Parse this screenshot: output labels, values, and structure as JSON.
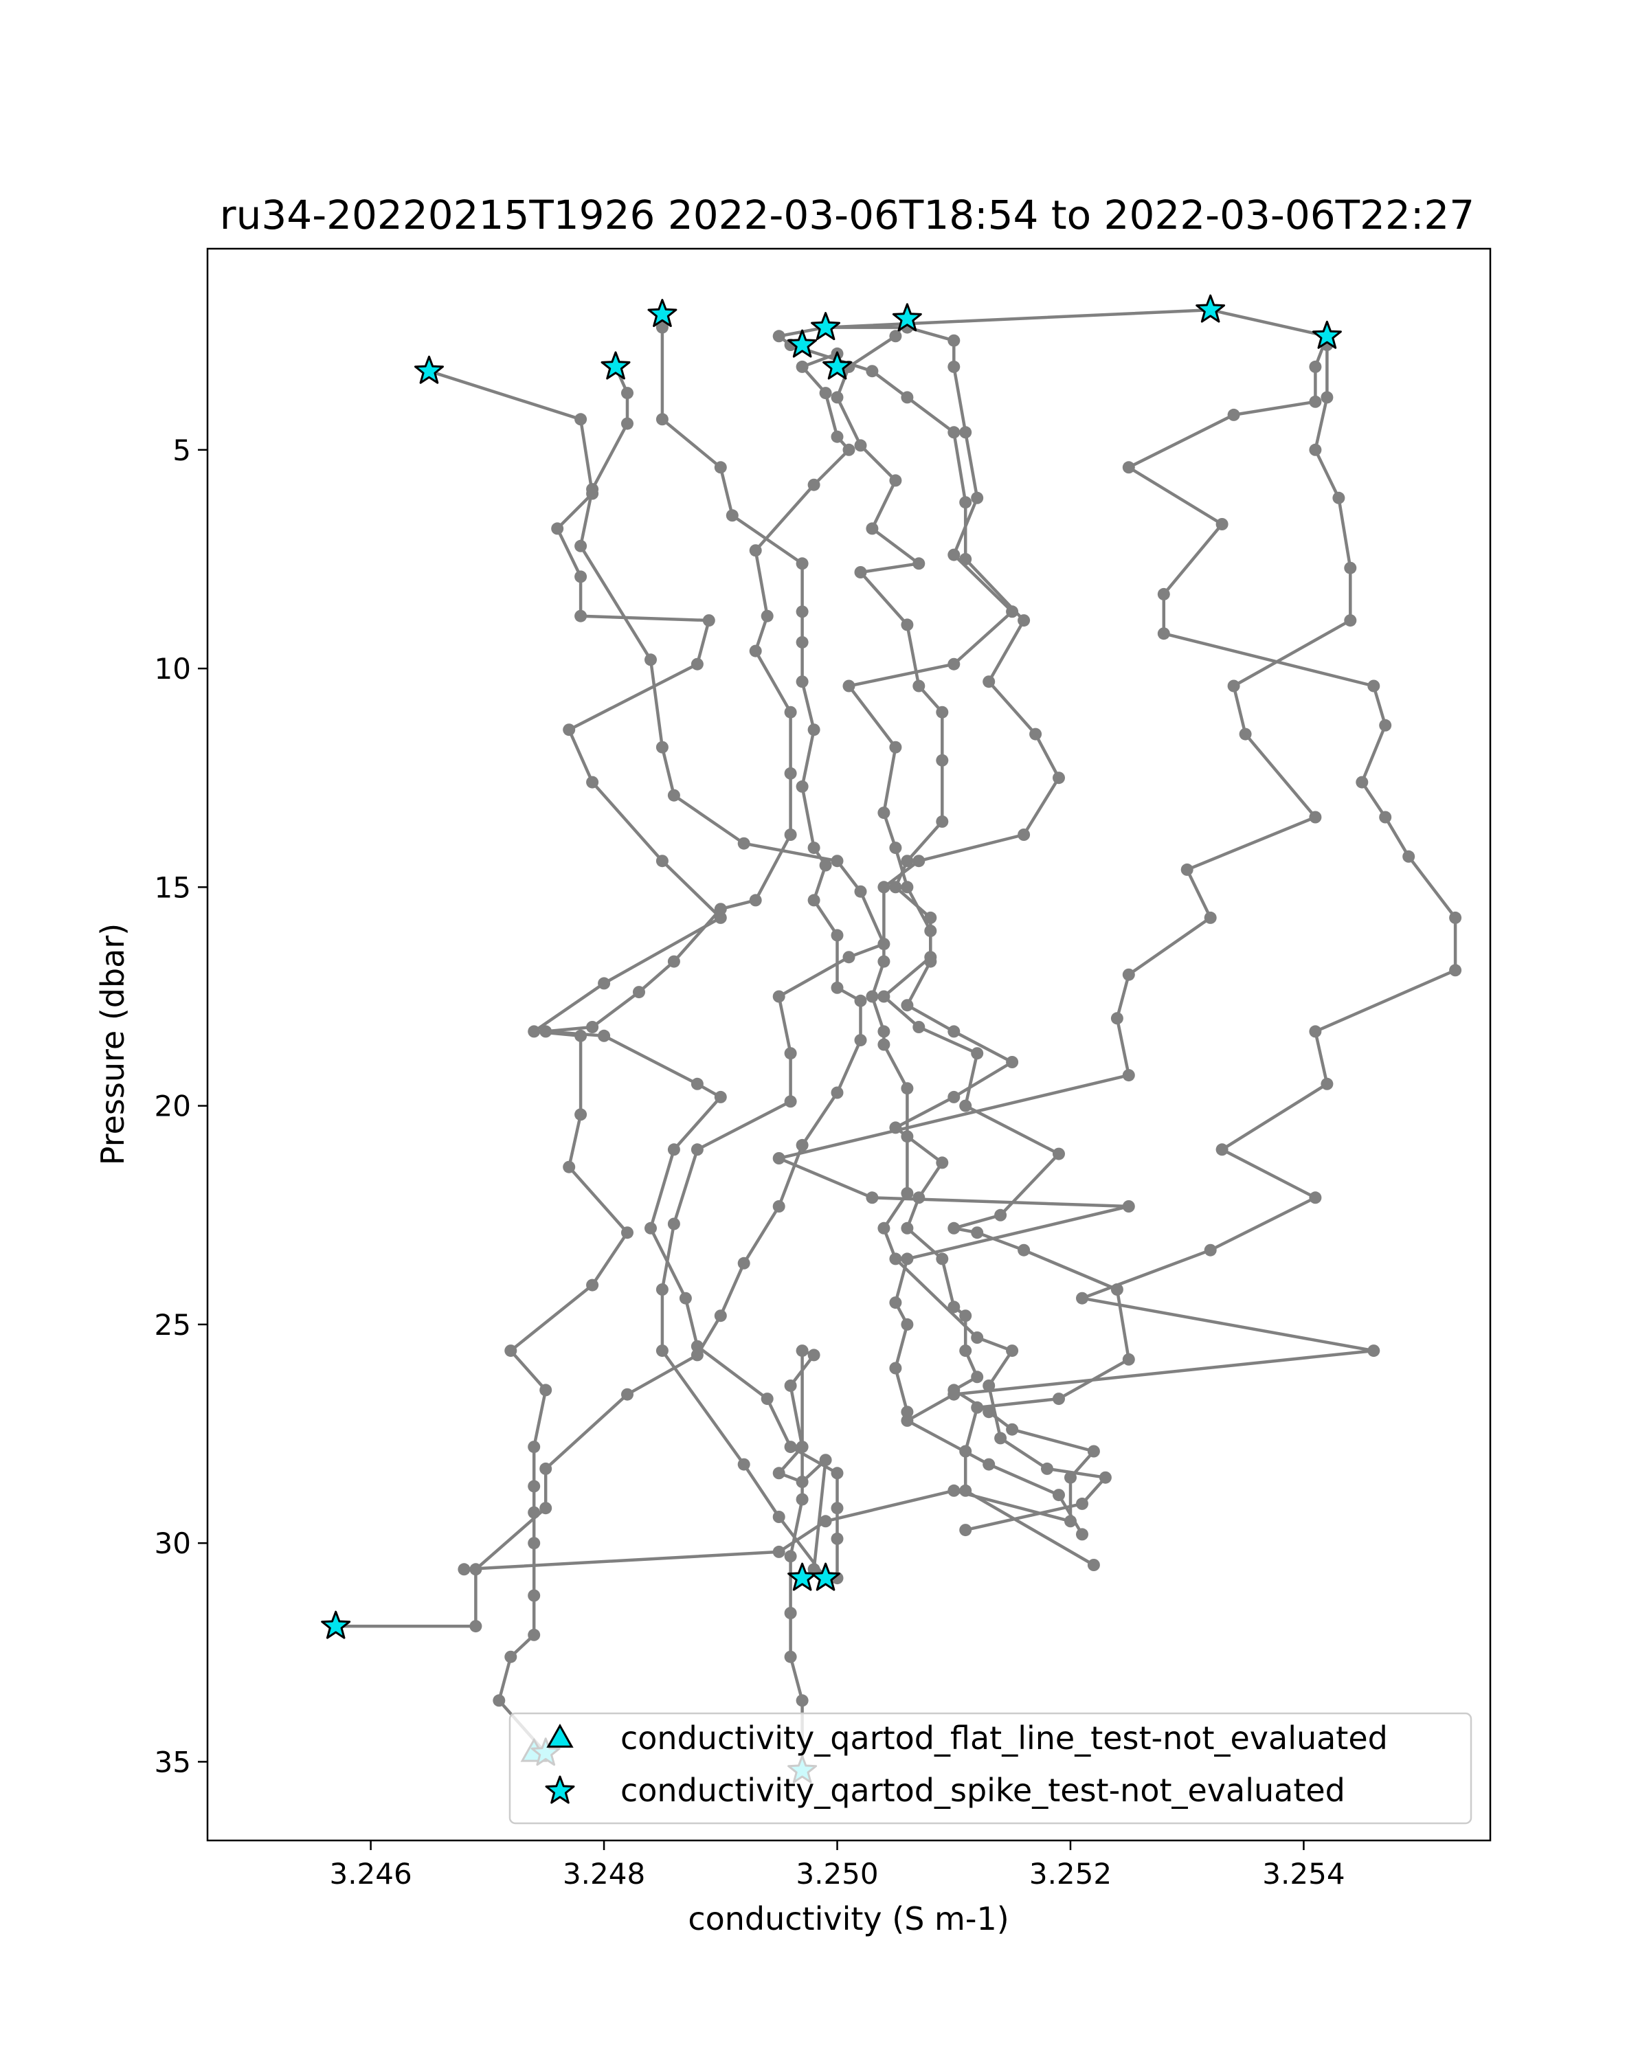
{
  "chart_data": {
    "type": "line",
    "title": "ru34-20220215T1926 2022-03-06T18:54 to 2022-03-06T22:27",
    "xlabel": "conductivity (S m-1)",
    "ylabel": "Pressure (dbar)",
    "xlim": [
      3.2446,
      3.2556
    ],
    "ylim": [
      36.8,
      0.4
    ],
    "y_inverted": true,
    "grid": false,
    "xticks": [
      3.246,
      3.248,
      3.25,
      3.252,
      3.254
    ],
    "xtick_labels": [
      "3.246",
      "3.248",
      "3.250",
      "3.252",
      "3.254"
    ],
    "yticks": [
      5,
      10,
      15,
      20,
      25,
      30,
      35
    ],
    "ytick_labels": [
      "5",
      "10",
      "15",
      "20",
      "25",
      "30",
      "35"
    ],
    "line_color": "#808080",
    "marker_color": "#00e5ee",
    "legend_placement": "lower center",
    "legend": [
      {
        "label": "conductivity_qartod_flat_line_test-not_evaluated",
        "marker": "triangle"
      },
      {
        "label": "conductivity_qartod_spike_test-not_evaluated",
        "marker": "star"
      }
    ],
    "series": [
      {
        "values": [
          [
            3.2465,
            3.2
          ],
          [
            3.2478,
            4.3
          ],
          [
            3.2479,
            6.0
          ],
          [
            3.2476,
            6.8
          ],
          [
            3.2478,
            7.9
          ],
          [
            3.2478,
            8.8
          ],
          [
            3.2489,
            8.9
          ],
          [
            3.2488,
            9.9
          ],
          [
            3.2477,
            11.4
          ],
          [
            3.2479,
            12.6
          ],
          [
            3.2485,
            14.4
          ],
          [
            3.249,
            15.7
          ],
          [
            3.248,
            17.2
          ],
          [
            3.2474,
            18.3
          ],
          [
            3.2478,
            18.4
          ],
          [
            3.2478,
            20.2
          ],
          [
            3.2477,
            21.4
          ],
          [
            3.2482,
            22.9
          ],
          [
            3.2479,
            24.1
          ],
          [
            3.2472,
            25.6
          ],
          [
            3.2475,
            26.5
          ],
          [
            3.2474,
            27.8
          ],
          [
            3.2474,
            28.7
          ],
          [
            3.2474,
            29.3
          ],
          [
            3.2474,
            30.0
          ],
          [
            3.2474,
            31.2
          ],
          [
            3.2474,
            32.1
          ],
          [
            3.2472,
            32.6
          ],
          [
            3.2471,
            33.6
          ],
          [
            3.2475,
            34.8
          ]
        ]
      },
      {
        "values": [
          [
            3.2481,
            3.1
          ],
          [
            3.2482,
            3.7
          ],
          [
            3.2482,
            4.4
          ],
          [
            3.2479,
            5.9
          ],
          [
            3.2478,
            7.2
          ],
          [
            3.2484,
            9.8
          ],
          [
            3.2485,
            11.8
          ],
          [
            3.2486,
            12.9
          ],
          [
            3.2492,
            14.0
          ],
          [
            3.25,
            14.4
          ],
          [
            3.2502,
            15.1
          ],
          [
            3.2504,
            16.3
          ],
          [
            3.2501,
            16.6
          ],
          [
            3.2495,
            17.5
          ],
          [
            3.2496,
            18.8
          ],
          [
            3.2496,
            19.9
          ],
          [
            3.2488,
            21.0
          ],
          [
            3.2486,
            22.7
          ],
          [
            3.2485,
            24.2
          ],
          [
            3.2485,
            25.6
          ],
          [
            3.2492,
            28.2
          ],
          [
            3.2495,
            29.4
          ],
          [
            3.2499,
            30.8
          ],
          [
            3.2498,
            30.6
          ],
          [
            3.2499,
            28.1
          ],
          [
            3.2497,
            28.6
          ],
          [
            3.2495,
            28.4
          ],
          [
            3.2497,
            27.8
          ],
          [
            3.2496,
            26.4
          ],
          [
            3.2498,
            25.7
          ],
          [
            3.2497,
            25.6
          ],
          [
            3.2497,
            29.0
          ],
          [
            3.2496,
            30.3
          ],
          [
            3.2496,
            31.6
          ],
          [
            3.2496,
            32.6
          ],
          [
            3.2497,
            33.6
          ],
          [
            3.2497,
            35.2
          ]
        ]
      },
      {
        "values": [
          [
            3.2485,
            1.9
          ],
          [
            3.2485,
            2.2
          ],
          [
            3.2485,
            4.3
          ],
          [
            3.249,
            5.4
          ],
          [
            3.2491,
            6.5
          ],
          [
            3.2497,
            7.6
          ],
          [
            3.2497,
            8.7
          ],
          [
            3.2497,
            9.4
          ],
          [
            3.2497,
            10.3
          ],
          [
            3.2498,
            11.4
          ],
          [
            3.2497,
            12.7
          ],
          [
            3.2498,
            14.1
          ],
          [
            3.2499,
            14.5
          ],
          [
            3.2498,
            15.3
          ],
          [
            3.25,
            16.1
          ],
          [
            3.25,
            17.3
          ],
          [
            3.2502,
            17.6
          ],
          [
            3.2502,
            18.5
          ],
          [
            3.25,
            19.7
          ],
          [
            3.2497,
            20.9
          ],
          [
            3.2495,
            22.3
          ],
          [
            3.2492,
            23.6
          ],
          [
            3.249,
            24.8
          ],
          [
            3.2488,
            25.7
          ],
          [
            3.2482,
            26.6
          ],
          [
            3.2475,
            28.3
          ],
          [
            3.2475,
            29.2
          ],
          [
            3.2469,
            30.6
          ],
          [
            3.2469,
            31.9
          ],
          [
            3.2457,
            31.9
          ]
        ]
      },
      {
        "values": [
          [
            3.25,
            2.8
          ],
          [
            3.2497,
            3.1
          ],
          [
            3.2499,
            3.7
          ],
          [
            3.25,
            4.7
          ],
          [
            3.2501,
            5.0
          ],
          [
            3.2498,
            5.8
          ],
          [
            3.2493,
            7.3
          ],
          [
            3.2494,
            8.8
          ],
          [
            3.2493,
            9.6
          ],
          [
            3.2496,
            11.0
          ],
          [
            3.2496,
            12.4
          ],
          [
            3.2496,
            13.8
          ],
          [
            3.2493,
            15.3
          ],
          [
            3.249,
            15.5
          ],
          [
            3.2486,
            16.7
          ],
          [
            3.2483,
            17.4
          ],
          [
            3.2479,
            18.2
          ],
          [
            3.2475,
            18.3
          ],
          [
            3.248,
            18.4
          ],
          [
            3.2488,
            19.5
          ],
          [
            3.249,
            19.8
          ],
          [
            3.2486,
            21.0
          ],
          [
            3.2484,
            22.8
          ],
          [
            3.2487,
            24.4
          ],
          [
            3.2488,
            25.5
          ],
          [
            3.2494,
            26.7
          ],
          [
            3.2496,
            27.8
          ],
          [
            3.25,
            28.4
          ],
          [
            3.25,
            29.2
          ],
          [
            3.25,
            29.9
          ],
          [
            3.25,
            30.8
          ]
        ]
      },
      {
        "values": [
          [
            3.2506,
            2.0
          ],
          [
            3.2505,
            2.4
          ],
          [
            3.2501,
            3.1
          ],
          [
            3.25,
            3.8
          ],
          [
            3.2502,
            4.9
          ],
          [
            3.2505,
            5.7
          ],
          [
            3.2503,
            6.8
          ],
          [
            3.2507,
            7.6
          ],
          [
            3.2502,
            7.8
          ],
          [
            3.2506,
            9.0
          ],
          [
            3.2507,
            10.4
          ],
          [
            3.2509,
            11.0
          ],
          [
            3.2509,
            12.1
          ],
          [
            3.2509,
            13.5
          ],
          [
            3.2506,
            14.4
          ],
          [
            3.2505,
            15.0
          ],
          [
            3.2508,
            15.7
          ],
          [
            3.2508,
            16.7
          ],
          [
            3.2506,
            17.7
          ],
          [
            3.251,
            18.3
          ],
          [
            3.2515,
            19.0
          ],
          [
            3.251,
            19.8
          ],
          [
            3.2505,
            20.5
          ],
          [
            3.2509,
            21.3
          ],
          [
            3.2507,
            22.1
          ],
          [
            3.2506,
            22.8
          ],
          [
            3.2509,
            23.5
          ],
          [
            3.251,
            24.6
          ],
          [
            3.2511,
            24.8
          ],
          [
            3.2511,
            25.6
          ],
          [
            3.2512,
            26.2
          ],
          [
            3.251,
            26.5
          ],
          [
            3.2513,
            27.0
          ],
          [
            3.2515,
            27.4
          ],
          [
            3.2522,
            27.9
          ],
          [
            3.252,
            28.5
          ],
          [
            3.252,
            29.5
          ],
          [
            3.251,
            28.8
          ],
          [
            3.2499,
            29.5
          ],
          [
            3.2495,
            30.2
          ],
          [
            3.2468,
            30.6
          ]
        ]
      },
      {
        "values": [
          [
            3.2499,
            2.2
          ],
          [
            3.2506,
            2.2
          ],
          [
            3.251,
            2.5
          ],
          [
            3.251,
            3.1
          ],
          [
            3.2511,
            4.6
          ],
          [
            3.2512,
            6.1
          ],
          [
            3.251,
            7.4
          ],
          [
            3.2515,
            8.7
          ],
          [
            3.251,
            9.9
          ],
          [
            3.2501,
            10.4
          ],
          [
            3.2505,
            11.8
          ],
          [
            3.2504,
            13.3
          ],
          [
            3.2505,
            14.1
          ],
          [
            3.2506,
            15.0
          ],
          [
            3.2508,
            16.0
          ],
          [
            3.2508,
            16.6
          ],
          [
            3.2504,
            17.5
          ],
          [
            3.2507,
            18.2
          ],
          [
            3.2512,
            18.8
          ],
          [
            3.2511,
            20.0
          ],
          [
            3.2519,
            21.1
          ],
          [
            3.2514,
            22.5
          ],
          [
            3.251,
            22.8
          ],
          [
            3.2512,
            22.9
          ],
          [
            3.2516,
            23.3
          ],
          [
            3.2524,
            24.2
          ],
          [
            3.2525,
            25.8
          ],
          [
            3.2519,
            26.7
          ],
          [
            3.2512,
            26.9
          ],
          [
            3.2511,
            27.9
          ],
          [
            3.2511,
            28.8
          ],
          [
            3.2522,
            30.5
          ]
        ]
      },
      {
        "values": [
          [
            3.2532,
            1.8
          ],
          [
            3.2499,
            2.2
          ],
          [
            3.2495,
            2.4
          ],
          [
            3.2496,
            2.6
          ],
          [
            3.2503,
            3.2
          ],
          [
            3.2506,
            3.8
          ],
          [
            3.251,
            4.6
          ],
          [
            3.2511,
            6.2
          ],
          [
            3.2511,
            7.5
          ],
          [
            3.2516,
            8.9
          ],
          [
            3.2513,
            10.3
          ],
          [
            3.2517,
            11.5
          ],
          [
            3.2519,
            12.5
          ],
          [
            3.2516,
            13.8
          ],
          [
            3.2507,
            14.4
          ],
          [
            3.2504,
            15.0
          ],
          [
            3.2504,
            16.7
          ],
          [
            3.2503,
            17.5
          ],
          [
            3.2504,
            18.3
          ],
          [
            3.2504,
            18.6
          ],
          [
            3.2506,
            19.6
          ],
          [
            3.2506,
            20.7
          ],
          [
            3.2506,
            22.0
          ],
          [
            3.2504,
            22.8
          ],
          [
            3.2505,
            23.5
          ],
          [
            3.2512,
            25.3
          ],
          [
            3.2515,
            25.6
          ],
          [
            3.2513,
            26.4
          ],
          [
            3.2514,
            27.6
          ],
          [
            3.2518,
            28.3
          ],
          [
            3.2523,
            28.5
          ],
          [
            3.2521,
            29.1
          ],
          [
            3.2511,
            29.7
          ]
        ]
      },
      {
        "values": [
          [
            3.2532,
            1.8
          ],
          [
            3.2542,
            2.4
          ],
          [
            3.2541,
            3.1
          ],
          [
            3.2541,
            3.9
          ],
          [
            3.2534,
            4.2
          ],
          [
            3.2525,
            5.4
          ],
          [
            3.2533,
            6.7
          ],
          [
            3.2528,
            8.3
          ],
          [
            3.2528,
            9.2
          ],
          [
            3.2546,
            10.4
          ],
          [
            3.2547,
            11.3
          ],
          [
            3.2545,
            12.6
          ],
          [
            3.2547,
            13.4
          ],
          [
            3.2549,
            14.3
          ],
          [
            3.2553,
            15.7
          ],
          [
            3.2553,
            16.9
          ],
          [
            3.2541,
            18.3
          ],
          [
            3.2542,
            19.5
          ],
          [
            3.2533,
            21.0
          ],
          [
            3.2541,
            22.1
          ],
          [
            3.2532,
            23.3
          ],
          [
            3.2521,
            24.4
          ],
          [
            3.2546,
            25.6
          ],
          [
            3.251,
            26.6
          ],
          [
            3.2506,
            27.2
          ],
          [
            3.2513,
            28.2
          ],
          [
            3.2519,
            28.9
          ],
          [
            3.2521,
            29.8
          ]
        ]
      },
      {
        "values": [
          [
            3.2542,
            2.6
          ],
          [
            3.2542,
            3.8
          ],
          [
            3.2541,
            5.0
          ],
          [
            3.2543,
            6.1
          ],
          [
            3.2544,
            7.7
          ],
          [
            3.2544,
            8.9
          ],
          [
            3.2534,
            10.4
          ],
          [
            3.2535,
            11.5
          ],
          [
            3.2541,
            13.4
          ],
          [
            3.253,
            14.6
          ],
          [
            3.2532,
            15.7
          ],
          [
            3.2525,
            17.0
          ],
          [
            3.2524,
            18.0
          ],
          [
            3.2525,
            19.3
          ],
          [
            3.2495,
            21.2
          ],
          [
            3.2503,
            22.1
          ],
          [
            3.2525,
            22.3
          ],
          [
            3.2506,
            23.5
          ],
          [
            3.2505,
            24.5
          ],
          [
            3.2506,
            25.0
          ],
          [
            3.2505,
            26.0
          ],
          [
            3.2506,
            27.0
          ]
        ]
      }
    ],
    "flat_line_markers": [
      [
        3.2474,
        34.8
      ]
    ],
    "spike_markers": [
      [
        3.2465,
        3.2
      ],
      [
        3.2481,
        3.1
      ],
      [
        3.2485,
        1.9
      ],
      [
        3.2497,
        2.6
      ],
      [
        3.2499,
        2.2
      ],
      [
        3.25,
        3.1
      ],
      [
        3.2506,
        2.0
      ],
      [
        3.2532,
        1.8
      ],
      [
        3.2542,
        2.4
      ],
      [
        3.2497,
        30.8
      ],
      [
        3.2499,
        30.8
      ],
      [
        3.2457,
        31.9
      ],
      [
        3.2475,
        34.8
      ],
      [
        3.2497,
        35.2
      ]
    ]
  }
}
